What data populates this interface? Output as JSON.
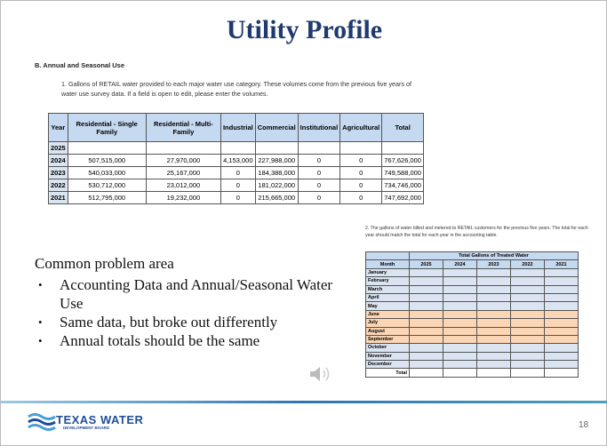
{
  "title": "Utility Profile",
  "section": "B. Annual and Seasonal Use",
  "paragraph1": "1. Gallons of RETAIL water provided to each major water use category. These volumes come from the previous five years of water use survey data. If a field is open to edit, please enter the volumes.",
  "table1": {
    "headers": [
      "Year",
      "Residential - Single Family",
      "Residential - Multi-Family",
      "Industrial",
      "Commercial",
      "Institutional",
      "Agricultural",
      "Total"
    ],
    "rows": [
      [
        "2025"
      ],
      [
        "2024",
        "507,515,000",
        "27,970,000",
        "4,153,000",
        "227,988,000",
        "0",
        "0",
        "767,626,000"
      ],
      [
        "2023",
        "540,033,000",
        "25,167,000",
        "0",
        "184,388,000",
        "0",
        "0",
        "749,588,000"
      ],
      [
        "2022",
        "530,712,000",
        "23,012,000",
        "0",
        "181,022,000",
        "0",
        "0",
        "734,746,000"
      ],
      [
        "2021",
        "512,795,000",
        "19,232,000",
        "0",
        "215,665,000",
        "0",
        "0",
        "747,692,000"
      ]
    ]
  },
  "paragraph2": "2. The gallons of water billed and metered to RETAIL customers for the previous five years. The total for each year should match the total for each year in the accounting table.",
  "table2": {
    "caption": "Total Gallons of Treated Water",
    "headers": [
      "Month",
      "2025",
      "2024",
      "2023",
      "2022",
      "2021"
    ],
    "months": [
      "January",
      "February",
      "March",
      "April",
      "May",
      "June",
      "July",
      "August",
      "September",
      "October",
      "November",
      "December"
    ],
    "total": "Total"
  },
  "notes": {
    "heading": "Common problem area",
    "bullets": [
      "Accounting Data and Annual/Seasonal Water Use",
      "Same data, but broke out differently",
      "Annual totals should be the same"
    ]
  },
  "footer": {
    "logo": "TEXAS WATER",
    "logo_sub": "DEVELOPMENT BOARD",
    "page": "18"
  }
}
